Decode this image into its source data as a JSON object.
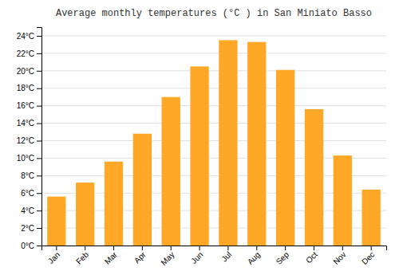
{
  "chart_data": {
    "type": "bar",
    "title": "Average monthly temperatures (°C ) in San Miniato Basso",
    "categories": [
      "Jan",
      "Feb",
      "Mar",
      "Apr",
      "May",
      "Jun",
      "Jul",
      "Aug",
      "Sep",
      "Oct",
      "Nov",
      "Dec"
    ],
    "values": [
      5.6,
      7.2,
      9.6,
      12.8,
      17.0,
      20.5,
      23.5,
      23.3,
      20.1,
      15.6,
      10.3,
      6.4
    ],
    "color": "#FFA726",
    "ylim": [
      0,
      25
    ],
    "yticks": [
      {
        "value": 0,
        "label": "0°C"
      },
      {
        "value": 2,
        "label": "2°C"
      },
      {
        "value": 4,
        "label": "4°C"
      },
      {
        "value": 6,
        "label": "6°C"
      },
      {
        "value": 8,
        "label": "8°C"
      },
      {
        "value": 10,
        "label": "10°C"
      },
      {
        "value": 12,
        "label": "12°C"
      },
      {
        "value": 14,
        "label": "14°C"
      },
      {
        "value": 16,
        "label": "16°C"
      },
      {
        "value": 18,
        "label": "18°C"
      },
      {
        "value": 20,
        "label": "20°C"
      },
      {
        "value": 22,
        "label": "22°C"
      },
      {
        "value": 24,
        "label": "24°C"
      }
    ],
    "grid": true
  }
}
